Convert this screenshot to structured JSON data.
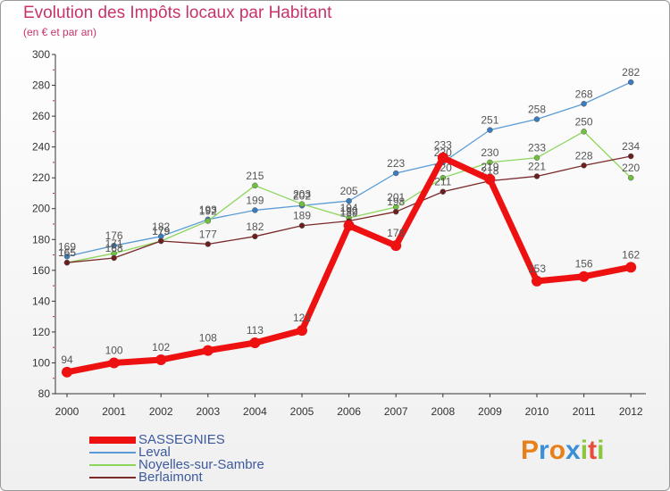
{
  "chart_data": {
    "type": "line",
    "title": "Evolution des Impôts locaux par Habitant",
    "subtitle": "(en € et par an)",
    "xlabel": "",
    "ylabel": "",
    "ylim": [
      80,
      300
    ],
    "yticks": [
      80,
      100,
      120,
      140,
      160,
      180,
      200,
      220,
      240,
      260,
      280,
      300
    ],
    "categories": [
      "2000",
      "2001",
      "2002",
      "2003",
      "2004",
      "2005",
      "2006",
      "2007",
      "2008",
      "2009",
      "2010",
      "2011",
      "2012"
    ],
    "series": [
      {
        "name": "Leval",
        "color": "#5b9bd5",
        "marker": "#3a7cc0",
        "values": [
          169,
          176,
          182,
          193,
          199,
          202,
          205,
          223,
          230,
          251,
          258,
          268,
          282
        ]
      },
      {
        "name": "Noyelles-sur-Sambre",
        "color": "#8cd65c",
        "marker": "#70c040",
        "values": [
          165,
          171,
          179,
          192,
          215,
          203,
          194,
          201,
          220,
          230,
          233,
          250,
          220
        ]
      },
      {
        "name": "Berlaimont",
        "color": "#7a2a2a",
        "marker": "#6b1f1f",
        "values": [
          165,
          168,
          179,
          177,
          182,
          189,
          192,
          198,
          211,
          218,
          221,
          228,
          234
        ]
      },
      {
        "name": "SASSEGNIES",
        "color": "#ee1111",
        "marker": "#ee1111",
        "values": [
          94,
          100,
          102,
          108,
          113,
          121,
          189,
          176,
          233,
          219,
          153,
          156,
          162
        ]
      }
    ],
    "legend_order": [
      "SASSEGNIES",
      "Leval",
      "Noyelles-sur-Sambre",
      "Berlaimont"
    ],
    "grid": false,
    "legend": "bottom-left"
  },
  "logo": {
    "letters": [
      "P",
      "r",
      "o",
      "x",
      "i",
      "t",
      "i"
    ],
    "colors": [
      "#e8801a",
      "#3b8fd6",
      "#e8801a",
      "#3b8fd6",
      "#8cc63f",
      "#e84c3d",
      "#8cc63f"
    ]
  }
}
